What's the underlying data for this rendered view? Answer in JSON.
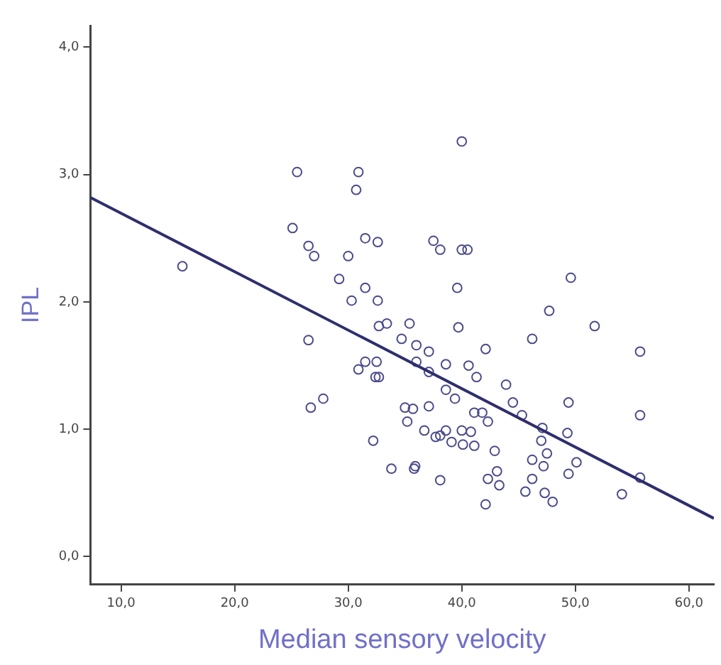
{
  "chart_data": {
    "type": "scatter",
    "xlabel": "Median sensory velocity",
    "ylabel": "IPL",
    "xlim": [
      7.3,
      62.2
    ],
    "ylim": [
      -0.22,
      4.17
    ],
    "xticks": [
      {
        "value": 10,
        "label": "10,0"
      },
      {
        "value": 20,
        "label": "20,0"
      },
      {
        "value": 30,
        "label": "30,0"
      },
      {
        "value": 40,
        "label": "40,0"
      },
      {
        "value": 50,
        "label": "50,0"
      },
      {
        "value": 60,
        "label": "60,0"
      }
    ],
    "yticks": [
      {
        "value": 0,
        "label": "0,0"
      },
      {
        "value": 1,
        "label": "1,0"
      },
      {
        "value": 2,
        "label": "2,0"
      },
      {
        "value": 3,
        "label": "3,0"
      },
      {
        "value": 4,
        "label": "4,0"
      }
    ],
    "grid": false,
    "legend": false,
    "marker": "circle",
    "series": [
      {
        "color": "#4b4b8c",
        "x": [
          25.5,
          30.9,
          30.7,
          25.1,
          15.4,
          26.5,
          27.0,
          31.5,
          32.6,
          30.0,
          29.2,
          31.5,
          30.3,
          32.6,
          32.7,
          33.4,
          34.7,
          26.5,
          31.5,
          32.5,
          30.9,
          32.4,
          32.7,
          26.7,
          27.8,
          32.2,
          33.8,
          40.0,
          37.5,
          38.1,
          40.0,
          40.5,
          49.6,
          39.6,
          35.4,
          39.7,
          47.7,
          51.7,
          36.0,
          37.1,
          42.1,
          46.2,
          55.7,
          36.0,
          38.6,
          40.6,
          37.1,
          41.3,
          38.6,
          43.9,
          39.4,
          44.5,
          49.4,
          45.3,
          55.7,
          35.0,
          35.7,
          37.1,
          35.2,
          41.1,
          41.8,
          42.3,
          47.1,
          49.3,
          36.7,
          37.7,
          38.1,
          38.6,
          40.0,
          40.8,
          39.1,
          40.1,
          41.1,
          47.0,
          42.9,
          47.5,
          46.2,
          50.1,
          47.2,
          35.9,
          35.8,
          43.1,
          49.4,
          55.7,
          38.1,
          42.3,
          43.3,
          46.2,
          45.6,
          47.3,
          54.1,
          48.0,
          42.1
        ],
        "values": [
          3.02,
          3.02,
          2.88,
          2.58,
          2.28,
          2.44,
          2.36,
          2.5,
          2.47,
          2.36,
          2.18,
          2.11,
          2.01,
          2.01,
          1.81,
          1.83,
          1.71,
          1.7,
          1.53,
          1.53,
          1.47,
          1.41,
          1.41,
          1.17,
          1.24,
          0.91,
          0.69,
          3.26,
          2.48,
          2.41,
          2.41,
          2.41,
          2.19,
          2.11,
          1.83,
          1.8,
          1.93,
          1.81,
          1.66,
          1.61,
          1.63,
          1.71,
          1.61,
          1.53,
          1.51,
          1.5,
          1.45,
          1.41,
          1.31,
          1.35,
          1.24,
          1.21,
          1.21,
          1.11,
          1.11,
          1.17,
          1.16,
          1.18,
          1.06,
          1.13,
          1.13,
          1.06,
          1.01,
          0.97,
          0.99,
          0.94,
          0.95,
          0.99,
          0.99,
          0.98,
          0.9,
          0.88,
          0.87,
          0.91,
          0.83,
          0.81,
          0.76,
          0.74,
          0.71,
          0.71,
          0.69,
          0.67,
          0.65,
          0.62,
          0.6,
          0.61,
          0.56,
          0.61,
          0.51,
          0.5,
          0.49,
          0.43,
          0.41
        ]
      },
      {
        "type": "line",
        "color": "#2e2e6e",
        "line_style": "solid",
        "marker": "none",
        "x": [
          7.3,
          62.2
        ],
        "values": [
          2.82,
          0.3
        ]
      }
    ]
  }
}
